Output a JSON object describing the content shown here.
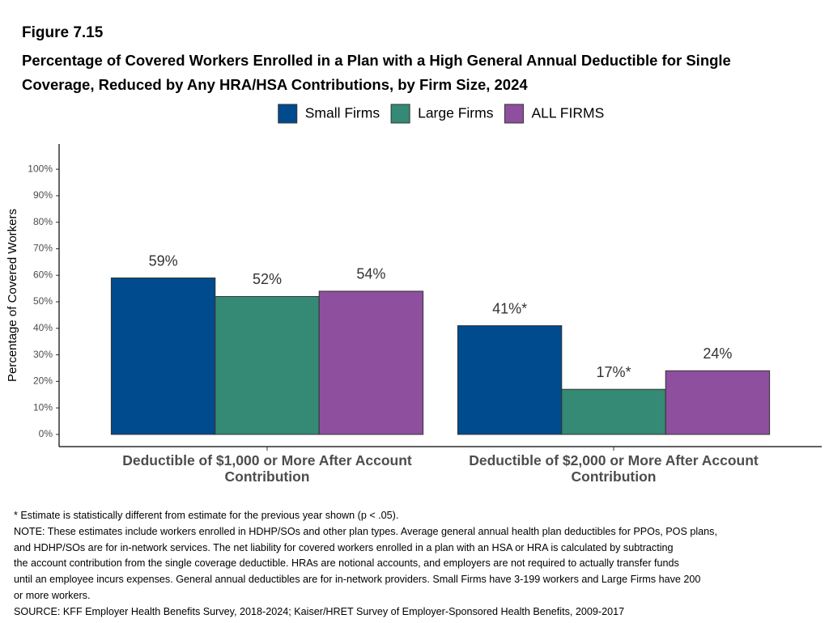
{
  "chart_data": {
    "type": "bar",
    "figure_label": "Figure 7.15",
    "title": "Percentage of Covered Workers Enrolled in a Plan with a High General Annual Deductible for Single Coverage, Reduced by Any HRA/HSA Contributions, by Firm Size, 2024",
    "y_label": "Percentage of Covered Workers",
    "categories": [
      "Deductible of $1,000 or More After Account Contribution",
      "Deductible of $2,000 or More After Account Contribution"
    ],
    "series": [
      {
        "name": "Small Firms",
        "color": "#004b8d",
        "values": [
          59,
          41
        ],
        "value_labels": [
          "59%",
          "41%*"
        ]
      },
      {
        "name": "Large Firms",
        "color": "#348a74",
        "values": [
          52,
          17
        ],
        "value_labels": [
          "52%",
          "17%*"
        ]
      },
      {
        "name": "ALL FIRMS",
        "color": "#8e4f9e",
        "values": [
          54,
          24
        ],
        "value_labels": [
          "54%",
          "24%"
        ]
      }
    ],
    "ylim": [
      -4.6,
      109.5
    ],
    "yticks": [
      {
        "value": 0,
        "label": "0%"
      },
      {
        "value": 10,
        "label": "10%"
      },
      {
        "value": 20,
        "label": "20%"
      },
      {
        "value": 30,
        "label": "30%"
      },
      {
        "value": 40,
        "label": "40%"
      },
      {
        "value": 50,
        "label": "50%"
      },
      {
        "value": 60,
        "label": "60%"
      },
      {
        "value": 70,
        "label": "70%"
      },
      {
        "value": 80,
        "label": "80%"
      },
      {
        "value": 90,
        "label": "90%"
      },
      {
        "value": 100,
        "label": "100%"
      }
    ],
    "legend": "top",
    "notes": [
      "* Estimate is statistically different from estimate for the previous year shown (p < .05).",
      "NOTE: These estimates include workers enrolled in HDHP/SOs and other plan types. Average general annual health plan deductibles for PPOs, POS plans,",
      "and HDHP/SOs are for in-network services. The net liability for covered workers enrolled in a plan with an HSA or HRA is calculated by subtracting",
      "the account contribution from the single coverage deductible. HRAs are notional accounts, and employers are not required to actually transfer funds",
      "until an employee incurs expenses. General annual deductibles are for in-network providers. Small Firms have 3-199 workers and Large Firms have 200",
      "or more workers.",
      "SOURCE: KFF Employer Health Benefits Survey, 2018-2024; Kaiser/HRET Survey of Employer-Sponsored Health Benefits, 2009-2017"
    ]
  }
}
